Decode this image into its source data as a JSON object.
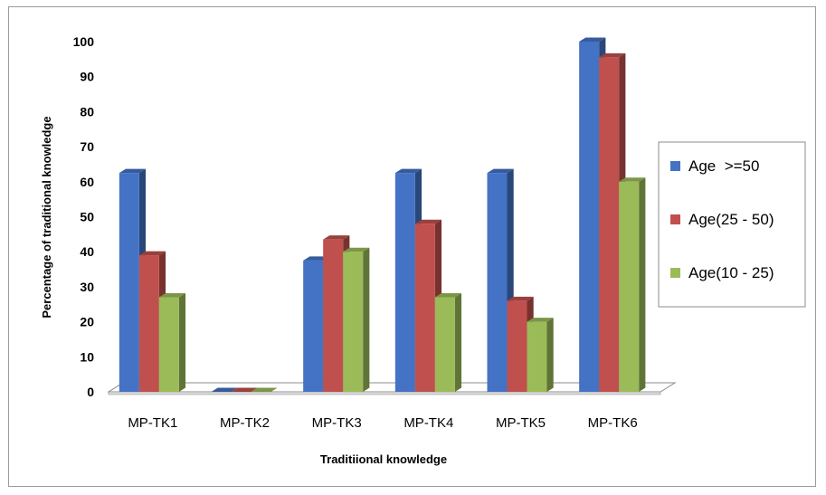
{
  "chart_data": {
    "type": "bar",
    "title": "",
    "xlabel": "Traditiional knowledge",
    "ylabel": "Percentage of traditional knowledge",
    "categories": [
      "MP-TK1",
      "MP-TK2",
      "MP-TK3",
      "MP-TK4",
      "MP-TK5",
      "MP-TK6"
    ],
    "series": [
      {
        "name": "Age  >=50",
        "values": [
          62.5,
          0,
          37.5,
          62.5,
          62.5,
          100
        ],
        "color": "#4472c4"
      },
      {
        "name": "Age(25 - 50)",
        "values": [
          39,
          0,
          43.5,
          48,
          26,
          95.5
        ],
        "color": "#c0504d"
      },
      {
        "name": "Age(10 - 25)",
        "values": [
          27,
          0,
          40,
          27,
          20,
          60
        ],
        "color": "#9bbb59"
      }
    ],
    "ylim": [
      0,
      100
    ],
    "yticks": [
      0,
      10,
      20,
      30,
      40,
      50,
      60,
      70,
      80,
      90,
      100
    ],
    "grid": false,
    "legend_position": "right"
  }
}
